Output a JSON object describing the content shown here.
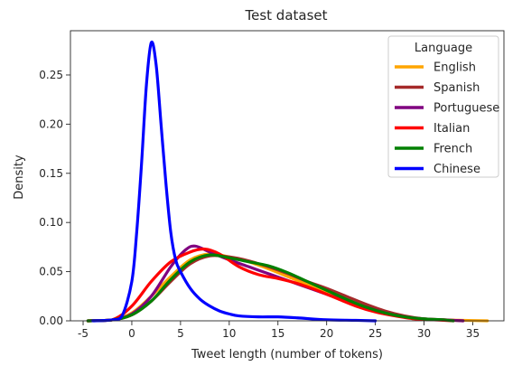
{
  "chart_data": {
    "type": "line",
    "title": "Test dataset",
    "xlabel": "Tweet length (number of tokens)",
    "ylabel": "Density",
    "xlim": [
      -6.3,
      38.2
    ],
    "ylim": [
      0,
      0.295
    ],
    "xticks": [
      -5,
      0,
      5,
      10,
      15,
      20,
      25,
      30,
      35
    ],
    "yticks": [
      0.0,
      0.05,
      0.1,
      0.15,
      0.2,
      0.25
    ],
    "ytick_labels": [
      "0.00",
      "0.05",
      "0.10",
      "0.15",
      "0.20",
      "0.25"
    ],
    "grid": false,
    "legend": {
      "title": "Language",
      "placement": "top-right"
    },
    "series": [
      {
        "name": "English",
        "color": "#ffa500",
        "x": [
          -4.5,
          -2,
          0,
          2,
          4,
          6,
          8,
          10,
          12,
          14,
          16,
          18,
          20,
          22,
          24,
          26,
          28,
          30,
          32,
          34,
          36.5
        ],
        "y": [
          0.0,
          0.001,
          0.008,
          0.025,
          0.045,
          0.062,
          0.068,
          0.065,
          0.06,
          0.053,
          0.045,
          0.037,
          0.029,
          0.021,
          0.014,
          0.008,
          0.004,
          0.002,
          0.001,
          0.0005,
          0.0
        ]
      },
      {
        "name": "Spanish",
        "color": "#a52a2a",
        "x": [
          -4.5,
          -2,
          0,
          2,
          4,
          6,
          8,
          10,
          12,
          14,
          16,
          18,
          20,
          22,
          24,
          26,
          28,
          30,
          32,
          34
        ],
        "y": [
          0.0,
          0.001,
          0.006,
          0.02,
          0.04,
          0.058,
          0.066,
          0.065,
          0.061,
          0.055,
          0.048,
          0.04,
          0.033,
          0.025,
          0.017,
          0.01,
          0.005,
          0.002,
          0.001,
          0.0
        ]
      },
      {
        "name": "Portuguese",
        "color": "#800080",
        "x": [
          -4.5,
          -2,
          0,
          2,
          4,
          5.5,
          6.5,
          8,
          10,
          12,
          14,
          16,
          18,
          20,
          22,
          24,
          26,
          28,
          30,
          32,
          34
        ],
        "y": [
          0.0,
          0.001,
          0.007,
          0.025,
          0.055,
          0.072,
          0.076,
          0.07,
          0.062,
          0.055,
          0.048,
          0.041,
          0.034,
          0.027,
          0.02,
          0.014,
          0.008,
          0.004,
          0.002,
          0.001,
          0.0
        ]
      },
      {
        "name": "Italian",
        "color": "#ff0000",
        "x": [
          -4.5,
          -2,
          0,
          2,
          4,
          6,
          7.5,
          9,
          11,
          13,
          15,
          17,
          19,
          21,
          23,
          25,
          27,
          29,
          31,
          33
        ],
        "y": [
          0.0,
          0.001,
          0.015,
          0.04,
          0.06,
          0.07,
          0.073,
          0.068,
          0.055,
          0.047,
          0.043,
          0.038,
          0.031,
          0.023,
          0.015,
          0.009,
          0.005,
          0.002,
          0.001,
          0.0
        ]
      },
      {
        "name": "French",
        "color": "#008000",
        "x": [
          -4.5,
          -2,
          0,
          2,
          4,
          6,
          8,
          10,
          12,
          14,
          16,
          18,
          20,
          22,
          24,
          26,
          28,
          30,
          32,
          33
        ],
        "y": [
          0.0,
          0.001,
          0.006,
          0.02,
          0.042,
          0.06,
          0.067,
          0.064,
          0.06,
          0.056,
          0.049,
          0.04,
          0.031,
          0.022,
          0.014,
          0.008,
          0.004,
          0.002,
          0.001,
          0.0
        ]
      },
      {
        "name": "Chinese",
        "color": "#0000ff",
        "x": [
          -4,
          -2,
          -1,
          0,
          0.5,
          1,
          1.5,
          2,
          2.5,
          3,
          3.5,
          4,
          4.5,
          5,
          6,
          7,
          8,
          9,
          10,
          11,
          13,
          15,
          17,
          20,
          23,
          25
        ],
        "y": [
          0.0,
          0.001,
          0.005,
          0.04,
          0.09,
          0.16,
          0.24,
          0.283,
          0.26,
          0.2,
          0.14,
          0.09,
          0.062,
          0.05,
          0.033,
          0.022,
          0.015,
          0.01,
          0.007,
          0.005,
          0.004,
          0.004,
          0.003,
          0.001,
          0.0005,
          0.0
        ]
      }
    ]
  }
}
